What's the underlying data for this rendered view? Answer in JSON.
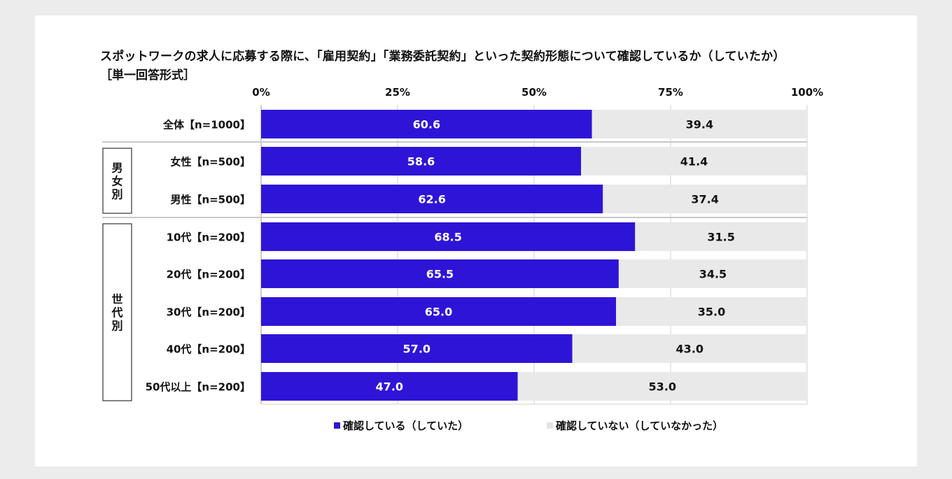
{
  "title": "スポットワークの求人に応募する際に、「雇用契約」「業務委託契約」といった契約形態について確認しているか（していたか）",
  "subtitle": "［単一回答形式］",
  "colors": {
    "series1": "#2e14d6",
    "series2": "#e9e9e9",
    "grid": "#cfcfcf",
    "separator": "#c8c8c8"
  },
  "chart_data": {
    "type": "bar",
    "orientation": "horizontal-stacked-100",
    "ticks": [
      "0%",
      "25%",
      "50%",
      "75%",
      "100%"
    ],
    "xlim": [
      0,
      100
    ],
    "categories": [
      "全体【n=1000】",
      "女性【n=500】",
      "男性【n=500】",
      "10代【n=200】",
      "20代【n=200】",
      "30代【n=200】",
      "40代【n=200】",
      "50代以上【n=200】"
    ],
    "groups": [
      {
        "label": "男女別",
        "rows": [
          1,
          2
        ]
      },
      {
        "label": "世代別",
        "rows": [
          3,
          7
        ]
      }
    ],
    "series": [
      {
        "name": "確認している（していた）",
        "values": [
          60.6,
          58.6,
          62.6,
          68.5,
          65.5,
          65.0,
          57.0,
          47.0
        ],
        "labels": [
          "60.6",
          "58.6",
          "62.6",
          "68.5",
          "65.5",
          "65.0",
          "57.0",
          "47.0"
        ]
      },
      {
        "name": "確認していない（していなかった）",
        "values": [
          39.4,
          41.4,
          37.4,
          31.5,
          34.5,
          35.0,
          43.0,
          53.0
        ],
        "labels": [
          "39.4",
          "41.4",
          "37.4",
          "31.5",
          "34.5",
          "35.0",
          "43.0",
          "53.0"
        ]
      }
    ],
    "legend": "bottom"
  }
}
